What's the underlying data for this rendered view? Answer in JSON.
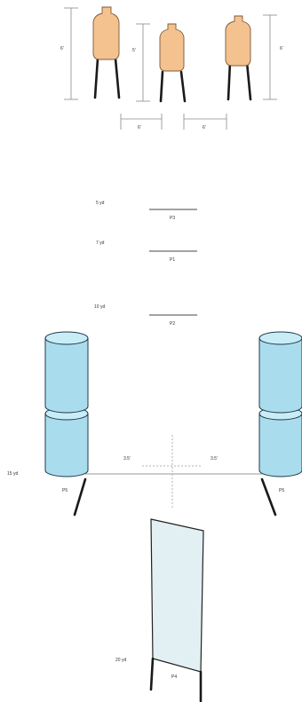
{
  "targets": {
    "heights": [
      "6'",
      "5'",
      "6'"
    ],
    "spacings": [
      "6'",
      "6'"
    ]
  },
  "distances": [
    {
      "yardage": "5 yd",
      "position": "P3"
    },
    {
      "yardage": "7 yd",
      "position": "P1"
    },
    {
      "yardage": "10 yd",
      "position": "P2"
    },
    {
      "yardage": "15 yd",
      "position": "P5",
      "position_right": "P5"
    },
    {
      "yardage": "20 yd",
      "position": "P4"
    }
  ],
  "center_offsets": [
    "3.5'",
    "3.5'"
  ],
  "colors": {
    "target_fill": "#f4c28f",
    "barrel_fill": "#a9ddee",
    "wall_fill": "#e2f0f3",
    "post": "#1a1a1a"
  }
}
